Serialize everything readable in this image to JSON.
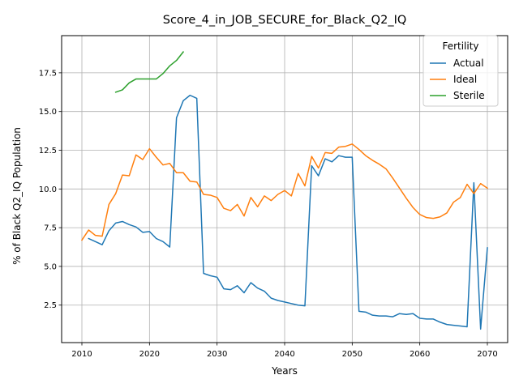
{
  "chart_data": {
    "type": "line",
    "title": "Score_4_in_JOB_SECURE_for_Black_Q2_IQ",
    "xlabel": "Years",
    "ylabel": "% of Black Q2_IQ Population",
    "xlim": [
      2007,
      2073
    ],
    "ylim": [
      0.08,
      19.9
    ],
    "xticks": [
      2010,
      2020,
      2030,
      2040,
      2050,
      2060,
      2070
    ],
    "yticks": [
      2.5,
      5.0,
      7.5,
      10.0,
      12.5,
      15.0,
      17.5
    ],
    "ytick_labels": [
      "2.5",
      "5.0",
      "7.5",
      "10.0",
      "12.5",
      "15.0",
      "17.5"
    ],
    "grid": true,
    "legend": {
      "title": "Fertility",
      "placement": "upper right"
    },
    "series": [
      {
        "name": "Actual",
        "color": "#1f77b4",
        "x": [
          2011,
          2012,
          2013,
          2014,
          2015,
          2016,
          2017,
          2018,
          2019,
          2020,
          2021,
          2022,
          2023,
          2024,
          2025,
          2026,
          2027,
          2028,
          2029,
          2030,
          2031,
          2032,
          2033,
          2034,
          2035,
          2036,
          2037,
          2038,
          2039,
          2040,
          2041,
          2042,
          2043,
          2044,
          2045,
          2046,
          2047,
          2048,
          2049,
          2050,
          2051,
          2052,
          2053,
          2054,
          2055,
          2056,
          2057,
          2058,
          2059,
          2060,
          2061,
          2062,
          2063,
          2064,
          2065,
          2066,
          2067,
          2068,
          2069,
          2070
        ],
        "y": [
          6.8,
          6.6,
          6.4,
          7.3,
          7.8,
          7.9,
          7.7,
          7.55,
          7.2,
          7.25,
          6.8,
          6.6,
          6.25,
          14.6,
          15.7,
          16.05,
          15.85,
          4.55,
          4.4,
          4.3,
          3.55,
          3.5,
          3.75,
          3.3,
          3.95,
          3.6,
          3.4,
          2.95,
          2.8,
          2.7,
          2.6,
          2.5,
          2.45,
          11.5,
          10.85,
          11.95,
          11.75,
          12.15,
          12.05,
          12.05,
          2.1,
          2.05,
          1.85,
          1.8,
          1.8,
          1.75,
          1.95,
          1.9,
          1.95,
          1.65,
          1.6,
          1.6,
          1.4,
          1.25,
          1.2,
          1.15,
          1.1,
          10.4,
          0.95,
          6.2
        ]
      },
      {
        "name": "Ideal",
        "color": "#ff7f0e",
        "x": [
          2010,
          2011,
          2012,
          2013,
          2014,
          2015,
          2016,
          2017,
          2018,
          2019,
          2020,
          2021,
          2022,
          2023,
          2024,
          2025,
          2026,
          2027,
          2028,
          2029,
          2030,
          2031,
          2032,
          2033,
          2034,
          2035,
          2036,
          2037,
          2038,
          2039,
          2040,
          2041,
          2042,
          2043,
          2044,
          2045,
          2046,
          2047,
          2048,
          2049,
          2050,
          2051,
          2052,
          2053,
          2054,
          2055,
          2056,
          2057,
          2058,
          2059,
          2060,
          2061,
          2062,
          2063,
          2064,
          2065,
          2066,
          2067,
          2068,
          2069,
          2070
        ],
        "y": [
          6.7,
          7.35,
          7.0,
          6.95,
          9.0,
          9.7,
          10.9,
          10.85,
          12.2,
          11.9,
          12.6,
          12.05,
          11.55,
          11.65,
          11.05,
          11.05,
          10.5,
          10.45,
          9.65,
          9.6,
          9.45,
          8.75,
          8.6,
          9.0,
          8.25,
          9.45,
          8.85,
          9.55,
          9.25,
          9.65,
          9.9,
          9.55,
          11.0,
          10.2,
          12.1,
          11.35,
          12.35,
          12.3,
          12.7,
          12.75,
          12.9,
          12.55,
          12.15,
          11.85,
          11.6,
          11.3,
          10.7,
          10.05,
          9.4,
          8.8,
          8.35,
          8.15,
          8.1,
          8.2,
          8.45,
          9.15,
          9.45,
          10.3,
          9.7,
          10.35,
          10.05
        ]
      },
      {
        "name": "Sterile",
        "color": "#2ca02c",
        "x": [
          2015,
          2016,
          2017,
          2018,
          2019,
          2020,
          2021,
          2022,
          2023,
          2024,
          2025
        ],
        "y": [
          16.25,
          16.4,
          16.85,
          17.1,
          17.1,
          17.1,
          17.1,
          17.45,
          17.95,
          18.3,
          18.85
        ]
      }
    ]
  }
}
